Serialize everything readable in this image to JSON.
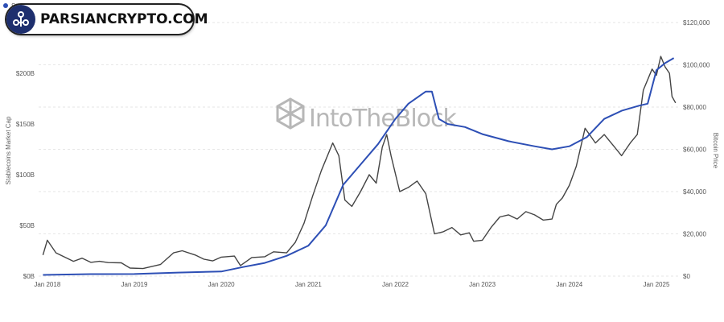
{
  "brand": {
    "logo_text": "PARSIANCRYPTO.COM",
    "watermark_text": "IntoTheBlock"
  },
  "colors": {
    "stablecoins": "#2d4fb5",
    "bitcoin": "#444444",
    "logo_bg": "#1e2f6e"
  },
  "chart_data": {
    "type": "line",
    "legend": [
      "Stablecoins Market Cap",
      "Bitcoin Price"
    ],
    "legend_placement": "top-left",
    "ylabel_left": "Stablecoins Market Cap",
    "ylabel_right": "Bitcoin Price",
    "x_ticks": [
      "Jan 2018",
      "Jan 2019",
      "Jan 2020",
      "Jan 2021",
      "Jan 2022",
      "Jan 2023",
      "Jan 2024",
      "Jan 2025"
    ],
    "x_range": [
      2017.9,
      2025.25
    ],
    "y_left_ticks": [
      "$0B",
      "$50B",
      "$100B",
      "$150B",
      "$200B"
    ],
    "y_left_range": [
      0,
      250
    ],
    "y_right_ticks": [
      "$0",
      "$20,000",
      "$40,000",
      "$60,000",
      "$80,000",
      "$100,000",
      "$120,000"
    ],
    "y_right_range": [
      0,
      120000
    ],
    "grid": true,
    "series": [
      {
        "name": "Stablecoins Market Cap",
        "axis": "left",
        "points": [
          [
            2017.95,
            1.2
          ],
          [
            2018.5,
            2.0
          ],
          [
            2019.0,
            2.1
          ],
          [
            2019.5,
            3.5
          ],
          [
            2020.0,
            4.5
          ],
          [
            2020.25,
            9
          ],
          [
            2020.5,
            13
          ],
          [
            2020.75,
            20
          ],
          [
            2021.0,
            30
          ],
          [
            2021.2,
            50
          ],
          [
            2021.4,
            90
          ],
          [
            2021.6,
            110
          ],
          [
            2021.8,
            130
          ],
          [
            2022.0,
            155
          ],
          [
            2022.15,
            170
          ],
          [
            2022.35,
            182
          ],
          [
            2022.42,
            182
          ],
          [
            2022.5,
            155
          ],
          [
            2022.6,
            150
          ],
          [
            2022.8,
            147
          ],
          [
            2023.0,
            140
          ],
          [
            2023.3,
            133
          ],
          [
            2023.6,
            128
          ],
          [
            2023.8,
            125
          ],
          [
            2024.0,
            128
          ],
          [
            2024.2,
            137
          ],
          [
            2024.4,
            155
          ],
          [
            2024.6,
            163
          ],
          [
            2024.8,
            168
          ],
          [
            2024.9,
            170
          ],
          [
            2025.0,
            203
          ],
          [
            2025.1,
            210
          ],
          [
            2025.2,
            215
          ]
        ]
      },
      {
        "name": "Bitcoin Price",
        "axis": "right",
        "points": [
          [
            2017.95,
            10000
          ],
          [
            2018.0,
            17000
          ],
          [
            2018.1,
            11000
          ],
          [
            2018.2,
            9000
          ],
          [
            2018.3,
            7000
          ],
          [
            2018.4,
            8500
          ],
          [
            2018.5,
            6500
          ],
          [
            2018.6,
            7000
          ],
          [
            2018.7,
            6400
          ],
          [
            2018.85,
            6300
          ],
          [
            2018.95,
            3800
          ],
          [
            2019.1,
            3600
          ],
          [
            2019.3,
            5500
          ],
          [
            2019.45,
            11000
          ],
          [
            2019.55,
            12000
          ],
          [
            2019.7,
            10000
          ],
          [
            2019.8,
            8000
          ],
          [
            2019.9,
            7200
          ],
          [
            2020.0,
            9000
          ],
          [
            2020.15,
            9500
          ],
          [
            2020.22,
            5000
          ],
          [
            2020.35,
            8800
          ],
          [
            2020.5,
            9200
          ],
          [
            2020.6,
            11500
          ],
          [
            2020.75,
            11000
          ],
          [
            2020.85,
            16000
          ],
          [
            2020.95,
            25000
          ],
          [
            2021.05,
            38000
          ],
          [
            2021.15,
            50000
          ],
          [
            2021.28,
            63000
          ],
          [
            2021.35,
            57000
          ],
          [
            2021.42,
            36000
          ],
          [
            2021.5,
            33000
          ],
          [
            2021.6,
            40000
          ],
          [
            2021.7,
            48000
          ],
          [
            2021.78,
            44000
          ],
          [
            2021.85,
            61000
          ],
          [
            2021.9,
            67000
          ],
          [
            2021.95,
            57000
          ],
          [
            2022.05,
            40000
          ],
          [
            2022.15,
            42000
          ],
          [
            2022.25,
            45000
          ],
          [
            2022.35,
            39000
          ],
          [
            2022.45,
            20000
          ],
          [
            2022.55,
            21000
          ],
          [
            2022.65,
            23000
          ],
          [
            2022.75,
            19500
          ],
          [
            2022.85,
            20500
          ],
          [
            2022.9,
            16500
          ],
          [
            2023.0,
            17000
          ],
          [
            2023.1,
            23000
          ],
          [
            2023.2,
            28000
          ],
          [
            2023.3,
            29000
          ],
          [
            2023.4,
            27000
          ],
          [
            2023.5,
            30500
          ],
          [
            2023.6,
            29000
          ],
          [
            2023.7,
            26500
          ],
          [
            2023.8,
            27000
          ],
          [
            2023.85,
            34000
          ],
          [
            2023.92,
            37000
          ],
          [
            2024.0,
            43000
          ],
          [
            2024.08,
            52000
          ],
          [
            2024.18,
            70000
          ],
          [
            2024.3,
            63000
          ],
          [
            2024.4,
            67000
          ],
          [
            2024.5,
            62000
          ],
          [
            2024.6,
            57000
          ],
          [
            2024.7,
            63000
          ],
          [
            2024.78,
            67000
          ],
          [
            2024.85,
            88000
          ],
          [
            2024.95,
            98000
          ],
          [
            2025.0,
            95000
          ],
          [
            2025.05,
            104000
          ],
          [
            2025.1,
            99000
          ],
          [
            2025.15,
            96000
          ],
          [
            2025.18,
            85000
          ],
          [
            2025.22,
            82000
          ]
        ]
      }
    ]
  }
}
